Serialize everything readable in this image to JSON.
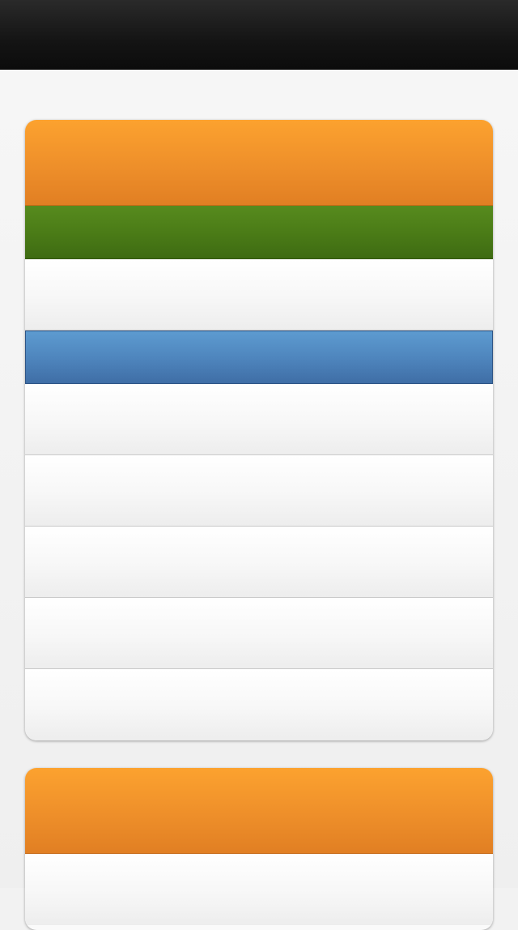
{
  "app": {
    "title": ""
  },
  "card1": {
    "header_label": "",
    "rows": [
      {
        "label": "",
        "style": "green"
      },
      {
        "label": "",
        "style": "white"
      },
      {
        "label": "",
        "style": "blue-selected"
      },
      {
        "label": "",
        "style": "white"
      },
      {
        "label": "",
        "style": "white"
      },
      {
        "label": "",
        "style": "white"
      },
      {
        "label": "",
        "style": "white"
      },
      {
        "label": "",
        "style": "white"
      }
    ]
  },
  "card2": {
    "header_label": "",
    "rows": [
      {
        "label": "",
        "style": "white"
      }
    ]
  },
  "colors": {
    "topbar": "#141414",
    "header_orange": "#ee8f2a",
    "row_green": "#4b7c17",
    "row_selected_blue": "#4f86be",
    "background": "#f2f2f2"
  }
}
